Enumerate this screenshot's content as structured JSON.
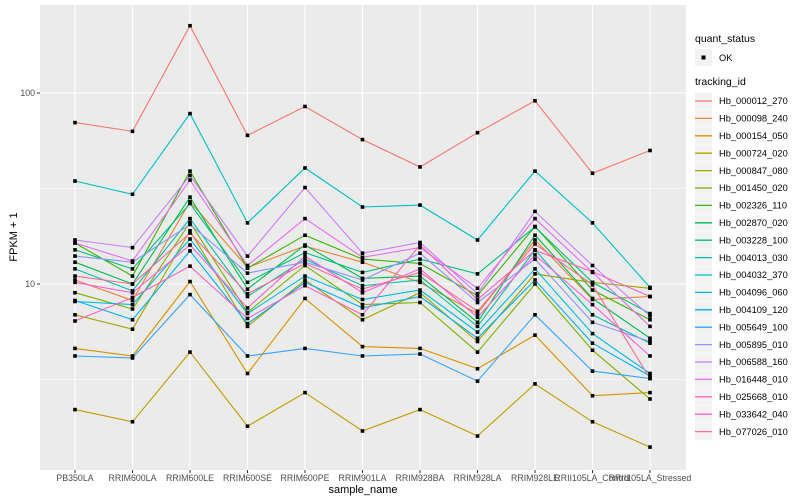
{
  "figure": {
    "panel_bg": "#EBEBEB",
    "grid_color": "#FFFFFF",
    "axis_text_color": "#4D4D4D",
    "tick_mark_color": "#333333",
    "point_color": "#000000"
  },
  "legend": {
    "shape_title": "quant_status",
    "shape_items": [
      {
        "label": "OK",
        "marker": "black-point"
      }
    ],
    "color_title": "tracking_id",
    "key_bg": "#F2F2F2"
  },
  "chart_data": {
    "type": "line",
    "title": "",
    "xlabel": "sample_name",
    "ylabel": "FPKM + 1",
    "y_scale": "log10",
    "grid": true,
    "legend_position": "right",
    "y_ticks": [
      {
        "value": 100,
        "label": "100"
      },
      {
        "value": 10,
        "label": "10"
      }
    ],
    "y_minor_ticks": [
      31.623,
      3.162
    ],
    "categories": [
      "PB350LA",
      "RRIM600LA",
      "RRIM600LE",
      "RRIM600SE",
      "RRIM600PE",
      "RRIM901LA",
      "RRIM928BA",
      "RRIM928LA",
      "RRIM928LE",
      "RRII105LA_Control",
      "RRII105LA_Stressed"
    ],
    "series": [
      {
        "name": "Hb_000012_270",
        "color": "#F8766D",
        "values": [
          70,
          63,
          225,
          60,
          85,
          57,
          41,
          62,
          91,
          38,
          50
        ]
      },
      {
        "name": "Hb_000098_240",
        "color": "#EB8335",
        "values": [
          10.5,
          8.2,
          27,
          12.2,
          15.8,
          13.0,
          10.2,
          7.0,
          17.0,
          8.3,
          8.6
        ]
      },
      {
        "name": "Hb_000154_050",
        "color": "#D89000",
        "values": [
          4.6,
          4.2,
          10.3,
          3.4,
          8.4,
          4.7,
          4.6,
          3.6,
          5.4,
          2.6,
          2.7
        ]
      },
      {
        "name": "Hb_000724_020",
        "color": "#C09B00",
        "values": [
          2.2,
          1.9,
          4.4,
          1.8,
          2.7,
          1.7,
          2.2,
          1.6,
          3.0,
          1.9,
          1.4
        ]
      },
      {
        "name": "Hb_000847_080",
        "color": "#A3A500",
        "values": [
          6.9,
          5.8,
          19,
          6.0,
          10.5,
          6.5,
          9.0,
          5.0,
          11.3,
          10.2,
          9.5
        ]
      },
      {
        "name": "Hb_001450_020",
        "color": "#7CAE00",
        "values": [
          9.0,
          7.4,
          21,
          7.1,
          12.5,
          7.8,
          8.0,
          4.4,
          10.0,
          4.5,
          2.5
        ]
      },
      {
        "name": "Hb_002326_110",
        "color": "#39B600",
        "values": [
          16.4,
          11.0,
          39,
          12.1,
          18,
          13.5,
          12.8,
          8.7,
          20,
          9.3,
          6.5
        ]
      },
      {
        "name": "Hb_002870_020",
        "color": "#00BB4E",
        "values": [
          13,
          10,
          28.5,
          9.4,
          16,
          10.7,
          11,
          6.3,
          18,
          8.4,
          5.2
        ]
      },
      {
        "name": "Hb_003228_100",
        "color": "#00BF7D",
        "values": [
          15.1,
          12,
          26.4,
          10.2,
          14.6,
          11.5,
          13.5,
          11.3,
          19.9,
          10.2,
          7.0
        ]
      },
      {
        "name": "Hb_004013_030",
        "color": "#00C1A3",
        "values": [
          12,
          9.2,
          22,
          8.6,
          13.5,
          9.8,
          10.5,
          6.0,
          15.1,
          6.9,
          4.9
        ]
      },
      {
        "name": "Hb_004032_370",
        "color": "#00BFC4",
        "values": [
          34.6,
          29.5,
          78,
          20.9,
          40.5,
          25.3,
          25.9,
          17,
          39,
          20.9,
          9.6
        ]
      },
      {
        "name": "Hb_004096_060",
        "color": "#00BADE",
        "values": [
          8.1,
          7.8,
          17.2,
          7.0,
          11,
          8.3,
          9.3,
          5.6,
          12.0,
          5.5,
          3.4
        ]
      },
      {
        "name": "Hb_004109_120",
        "color": "#00B0F6",
        "values": [
          8.2,
          6.5,
          14.9,
          6.2,
          10.2,
          7.5,
          8.6,
          5.2,
          10.5,
          4.9,
          3.3
        ]
      },
      {
        "name": "Hb_005649_100",
        "color": "#35A2FF",
        "values": [
          4.2,
          4.1,
          8.8,
          4.2,
          4.6,
          4.2,
          4.3,
          3.1,
          6.9,
          3.5,
          3.2
        ]
      },
      {
        "name": "Hb_005895_010",
        "color": "#9590FF",
        "values": [
          14,
          13,
          20.5,
          11.4,
          13,
          10.5,
          14.5,
          8.0,
          13.5,
          6.3,
          5.0
        ]
      },
      {
        "name": "Hb_006588_160",
        "color": "#C77CFF",
        "values": [
          17,
          15.5,
          37,
          14,
          32,
          14.5,
          16.5,
          8.9,
          24,
          12.5,
          6.8
        ]
      },
      {
        "name": "Hb_016448_010",
        "color": "#E76BF3",
        "values": [
          16.4,
          13.2,
          35,
          12.5,
          22,
          13.8,
          15.5,
          9.5,
          22,
          11.5,
          6.0
        ]
      },
      {
        "name": "Hb_025668_010",
        "color": "#FA62DB",
        "values": [
          10.2,
          9.0,
          16,
          7.5,
          14,
          9.0,
          12.0,
          6.7,
          14.2,
          7.8,
          4.2
        ]
      },
      {
        "name": "Hb_033642_040",
        "color": "#FF62BC",
        "values": [
          6.4,
          8.5,
          12.4,
          6.6,
          9.8,
          6.9,
          16.0,
          8.3,
          15.0,
          11.6,
          8.6
        ]
      },
      {
        "name": "Hb_077026_010",
        "color": "#FF6A98",
        "values": [
          11.0,
          10.0,
          18.5,
          8.9,
          12.8,
          9.4,
          11.5,
          7.2,
          16.2,
          9.9,
          3.2
        ]
      }
    ]
  }
}
